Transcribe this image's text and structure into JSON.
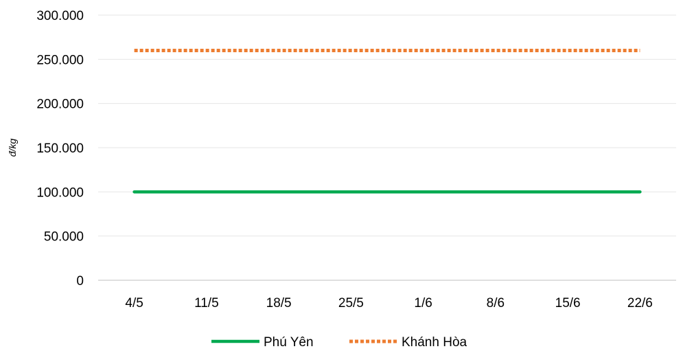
{
  "chart_data": {
    "type": "line",
    "xlabel": "",
    "ylabel": "đ/kg",
    "categories": [
      "4/5",
      "11/5",
      "18/5",
      "25/5",
      "1/6",
      "8/6",
      "15/6",
      "22/6"
    ],
    "ylim": [
      0,
      300000
    ],
    "yticks": [
      0,
      50000,
      100000,
      150000,
      200000,
      250000,
      300000
    ],
    "ytick_labels": [
      "0",
      "50.000",
      "100.000",
      "150.000",
      "200.000",
      "250.000",
      "300.000"
    ],
    "grid": true,
    "legend_position": "bottom",
    "series": [
      {
        "name": "Phú Yên",
        "values": [
          100000,
          100000,
          100000,
          100000,
          100000,
          100000,
          100000,
          100000
        ],
        "color": "#00a94f",
        "style": "solid"
      },
      {
        "name": "Khánh Hòa",
        "values": [
          260000,
          260000,
          260000,
          260000,
          260000,
          260000,
          260000,
          260000
        ],
        "color": "#ed7d31",
        "style": "dotted"
      }
    ]
  }
}
